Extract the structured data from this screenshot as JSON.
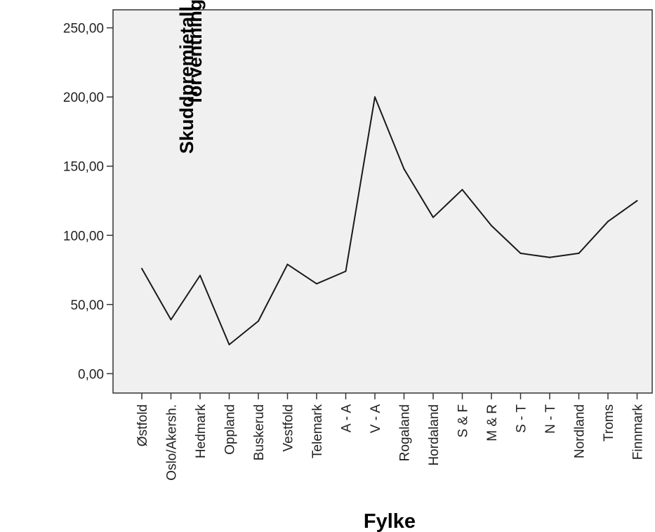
{
  "chart_data": {
    "type": "line",
    "title": "",
    "xlabel": "Fylke",
    "ylabel_lines": [
      "Skuddpremietall som % av",
      "forventning"
    ],
    "categories": [
      "Østfold",
      "Oslo/Akersh.",
      "Hedmark",
      "Oppland",
      "Buskerud",
      "Vestfold",
      "Telemark",
      "A - A",
      "V - A",
      "Rogaland",
      "Hordaland",
      "S & F",
      "M & R",
      "S - T",
      "N - T",
      "Nordland",
      "Troms",
      "Finnmark"
    ],
    "values": [
      76,
      39,
      71,
      21,
      38,
      79,
      65,
      74,
      200,
      148,
      113,
      133,
      107,
      87,
      84,
      87,
      110,
      125
    ],
    "ylim": [
      -14,
      263
    ],
    "yticks": [
      0,
      50,
      100,
      150,
      200,
      250
    ],
    "ytick_labels": [
      "0,00",
      "50,00",
      "100,00",
      "150,00",
      "200,00",
      "250,00"
    ],
    "plot_background": "#f0f0f0",
    "line_color": "#1a1a1a",
    "grid": false,
    "legend": false
  }
}
